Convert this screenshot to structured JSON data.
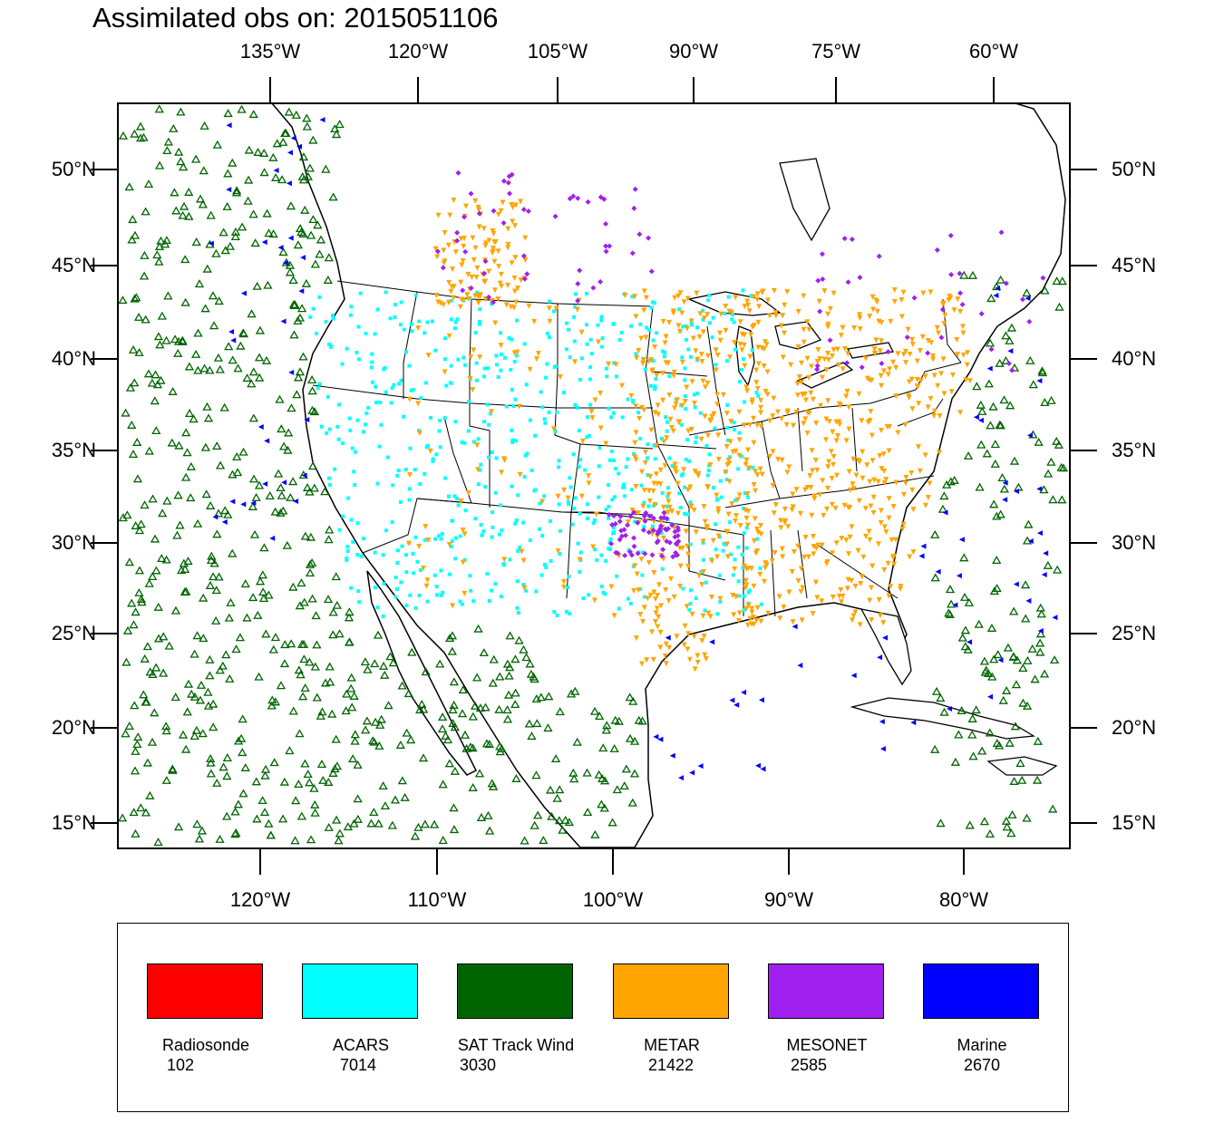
{
  "title": "Assimilated obs on: 2015051106",
  "axes": {
    "top_lon_labels": [
      "135°W",
      "120°W",
      "105°W",
      "90°W",
      "75°W",
      "60°W"
    ],
    "bottom_lon_labels": [
      "120°W",
      "110°W",
      "100°W",
      "90°W",
      "80°W"
    ],
    "lat_labels": [
      "50°N",
      "45°N",
      "40°N",
      "35°N",
      "30°N",
      "25°N",
      "20°N",
      "15°N"
    ]
  },
  "legend": {
    "items": [
      {
        "name": "Radiosonde",
        "count": "102",
        "color": "#ff0000"
      },
      {
        "name": "ACARS",
        "count": "7014",
        "color": "#00ffff"
      },
      {
        "name": "SAT Track Wind",
        "count": "3030",
        "color": "#006400"
      },
      {
        "name": "METAR",
        "count": "21422",
        "color": "#ffa500"
      },
      {
        "name": "MESONET",
        "count": "2585",
        "color": "#a020f0"
      },
      {
        "name": "Marine",
        "count": "2670",
        "color": "#0000ff"
      }
    ]
  }
}
